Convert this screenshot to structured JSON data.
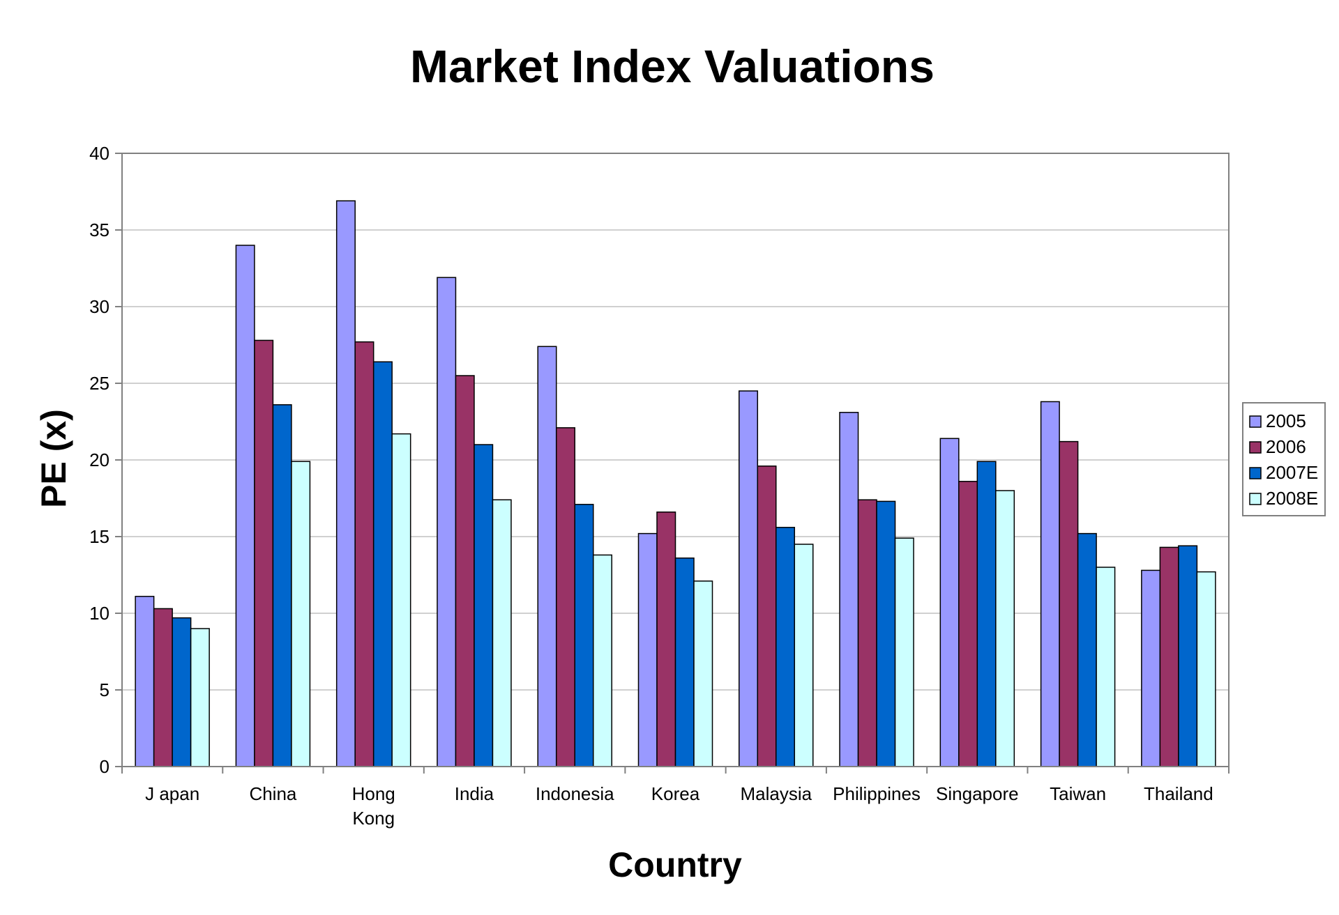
{
  "chart_data": {
    "type": "bar",
    "title": "Market Index Valuations",
    "xlabel": "Country",
    "ylabel": "PE (x)",
    "ylim": [
      0,
      40
    ],
    "yticks": [
      0,
      5,
      10,
      15,
      20,
      25,
      30,
      35,
      40
    ],
    "grid": true,
    "legend_position": "right",
    "categories": [
      "J apan",
      "China",
      "Hong Kong",
      "India",
      "Indonesia",
      "Korea",
      "Malaysia",
      "Philippines",
      "Singapore",
      "Taiwan",
      "Thailand"
    ],
    "category_label_lines": [
      [
        "J apan"
      ],
      [
        "China"
      ],
      [
        "Hong",
        "Kong"
      ],
      [
        "India"
      ],
      [
        "Indonesia"
      ],
      [
        "Korea"
      ],
      [
        "Malaysia"
      ],
      [
        "Philippines"
      ],
      [
        "Singapore"
      ],
      [
        "Taiwan"
      ],
      [
        "Thailand"
      ]
    ],
    "series": [
      {
        "name": "2005",
        "color": "#9999ff",
        "values": [
          11.1,
          34.0,
          36.9,
          31.9,
          27.4,
          15.2,
          24.5,
          23.1,
          21.4,
          23.8,
          12.8
        ]
      },
      {
        "name": "2006",
        "color": "#993366",
        "values": [
          10.3,
          27.8,
          27.7,
          25.5,
          22.1,
          16.6,
          19.6,
          17.4,
          18.6,
          21.2,
          14.3
        ]
      },
      {
        "name": "2007E",
        "color": "#0066cc",
        "values": [
          9.7,
          23.6,
          26.4,
          21.0,
          17.1,
          13.6,
          15.6,
          17.3,
          19.9,
          15.2,
          14.4
        ]
      },
      {
        "name": "2008E",
        "color": "#ccffff",
        "values": [
          9.0,
          19.9,
          21.7,
          17.4,
          13.8,
          12.1,
          14.5,
          14.9,
          18.0,
          13.0,
          12.7
        ]
      }
    ],
    "colors": {
      "grid": "#c0c0c0",
      "axis": "#808080",
      "bar_outline": "#000000",
      "text": "#000000"
    }
  }
}
